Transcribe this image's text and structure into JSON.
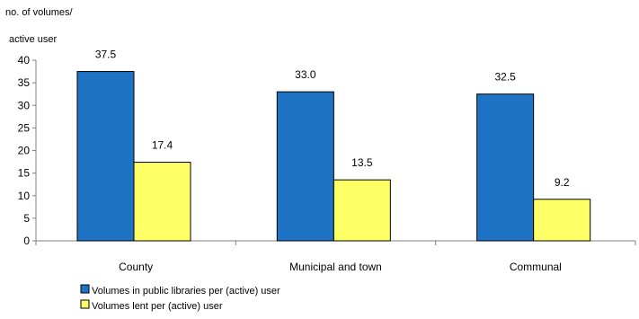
{
  "chart_data": {
    "type": "bar",
    "title": "",
    "xlabel": "",
    "ylabel": [
      "no. of volumes/",
      "active user"
    ],
    "ylim": [
      0,
      40
    ],
    "yticks": [
      0,
      5,
      10,
      15,
      20,
      25,
      30,
      35,
      40
    ],
    "grid": false,
    "legend_position": "bottom-left",
    "categories": [
      "County",
      "Municipal and town",
      "Communal"
    ],
    "series": [
      {
        "name": "Volumes in public libraries per (active) user",
        "color": "#1f73c4",
        "values": [
          37.5,
          33.0,
          32.5
        ],
        "labels": [
          "37.5",
          "33.0",
          "32.5"
        ]
      },
      {
        "name": "Volumes lent per (active) user",
        "color": "#ffff66",
        "values": [
          17.4,
          13.5,
          9.2
        ],
        "labels": [
          "17.4",
          "13.5",
          "9.2"
        ]
      }
    ]
  }
}
